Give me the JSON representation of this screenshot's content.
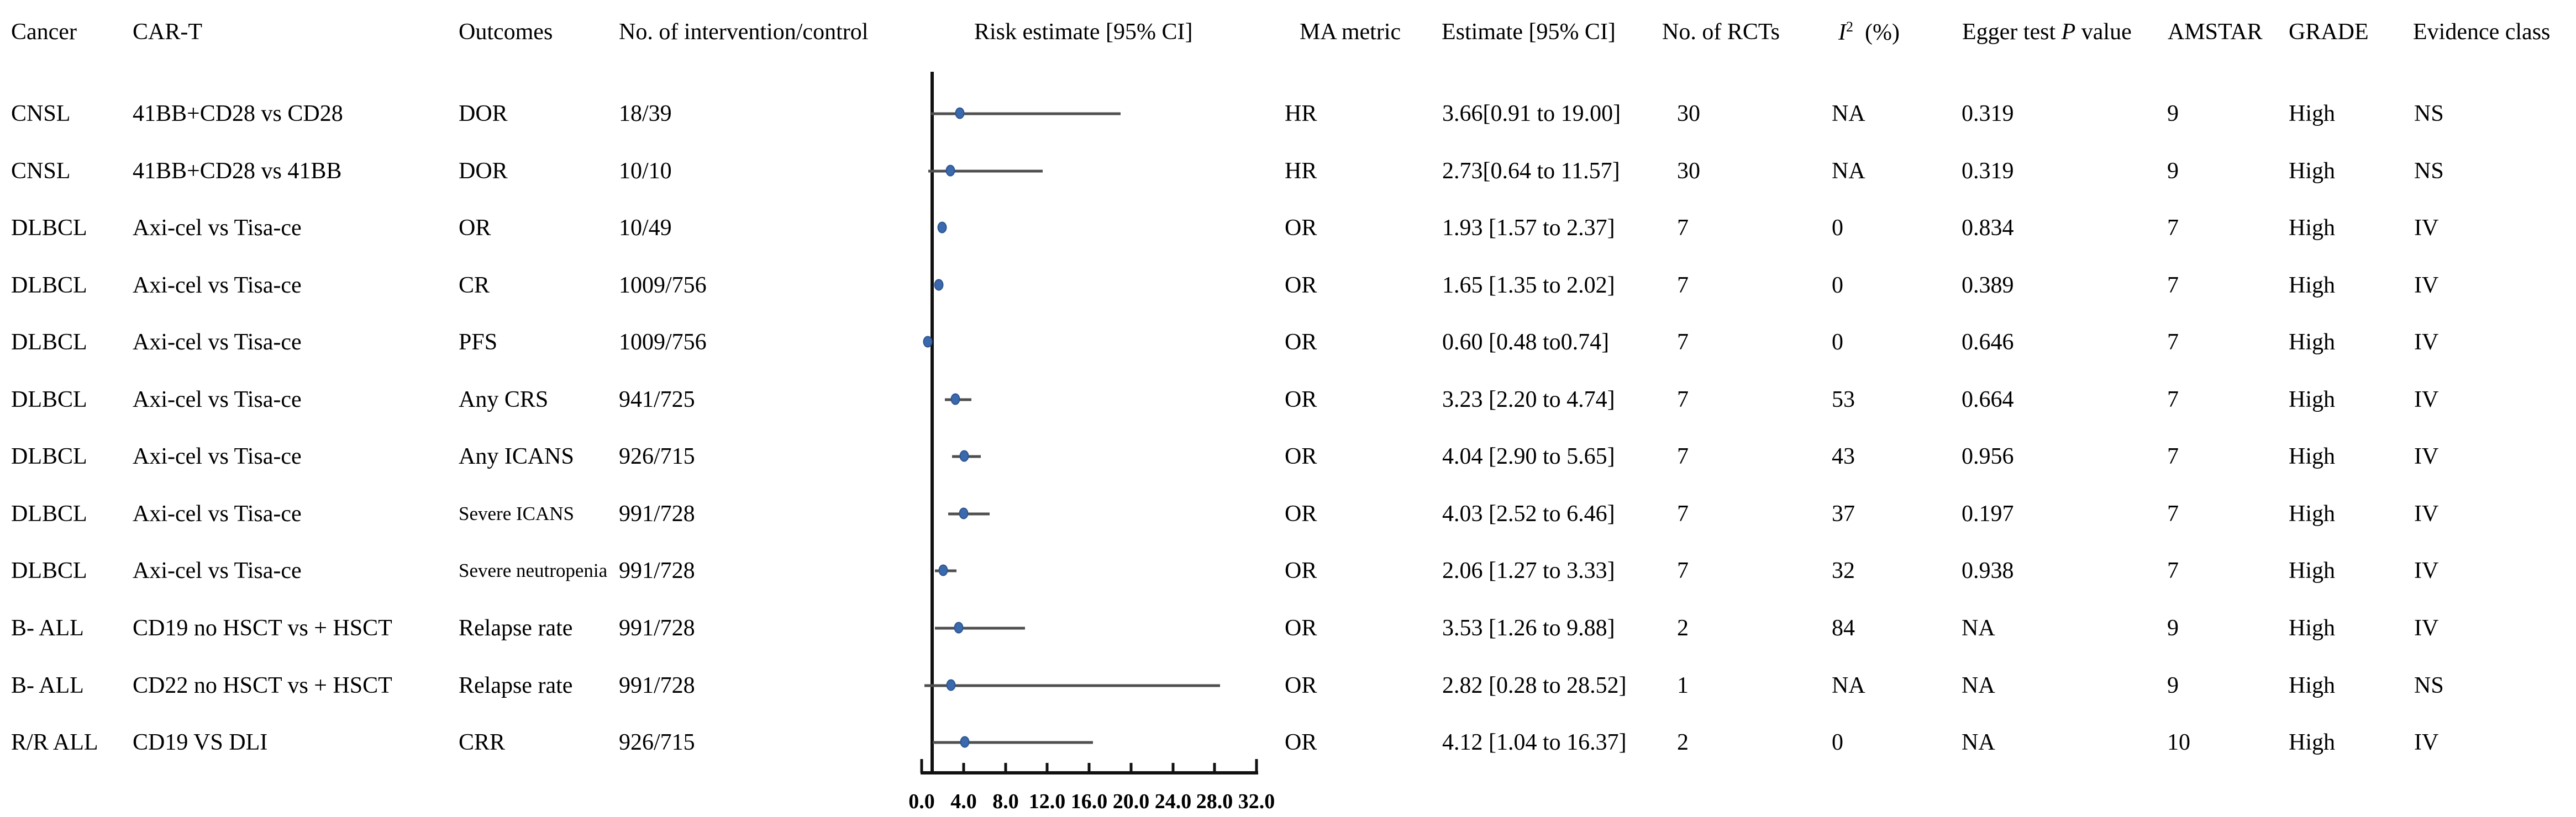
{
  "header": {
    "cancer": "Cancer",
    "cart": "CAR-T",
    "outcomes": "Outcomes",
    "n_intervention": "No. of intervention/control",
    "risk_estimate": "Risk estimate [95% CI]",
    "ma_metric": "MA metric",
    "estimate": "Estimate [95% CI]",
    "rcts": "No. of RCTs",
    "i2_base": "I",
    "i2_sup": "2",
    "i2_suffix": "(%)",
    "egger_pre": "Egger test",
    "egger_p": "P",
    "egger_post": "value",
    "amstar": "AMSTAR",
    "grade": "GRADE",
    "evidence": "Evidence class"
  },
  "rows": [
    {
      "cancer": "CNSL",
      "cart": "41BB+CD28 vs CD28",
      "outcome": "DOR",
      "n": "18/39",
      "ma": "HR",
      "estimate": "3.66[0.91 to 19.00]",
      "rcts": "30",
      "i2": "NA",
      "egger": "0.319",
      "amstar": "9",
      "grade": "High",
      "evidence": "NS"
    },
    {
      "cancer": "CNSL",
      "cart": "41BB+CD28 vs 41BB",
      "outcome": "DOR",
      "n": "10/10",
      "ma": "HR",
      "estimate": "2.73[0.64 to 11.57]",
      "rcts": "30",
      "i2": "NA",
      "egger": "0.319",
      "amstar": "9",
      "grade": "High",
      "evidence": "NS"
    },
    {
      "cancer": "DLBCL",
      "cart": "Axi-cel vs Tisa-ce",
      "outcome": "OR",
      "n": "10/49",
      "ma": "OR",
      "estimate": "1.93 [1.57 to 2.37]",
      "rcts": "7",
      "i2": "0",
      "egger": "0.834",
      "amstar": "7",
      "grade": "High",
      "evidence": "IV"
    },
    {
      "cancer": "DLBCL",
      "cart": "Axi-cel vs Tisa-ce",
      "outcome": "CR",
      "n": "1009/756",
      "ma": "OR",
      "estimate": "1.65 [1.35 to 2.02]",
      "rcts": "7",
      "i2": "0",
      "egger": "0.389",
      "amstar": "7",
      "grade": "High",
      "evidence": "IV"
    },
    {
      "cancer": "DLBCL",
      "cart": "Axi-cel vs Tisa-ce",
      "outcome": "PFS",
      "n": "1009/756",
      "ma": "OR",
      "estimate": "0.60 [0.48 to0.74]",
      "rcts": "7",
      "i2": "0",
      "egger": "0.646",
      "amstar": "7",
      "grade": "High",
      "evidence": "IV"
    },
    {
      "cancer": "DLBCL",
      "cart": "Axi-cel vs Tisa-ce",
      "outcome": "Any CRS",
      "n": "941/725",
      "ma": "OR",
      "estimate": "3.23 [2.20 to 4.74]",
      "rcts": "7",
      "i2": "53",
      "egger": "0.664",
      "amstar": "7",
      "grade": "High",
      "evidence": "IV"
    },
    {
      "cancer": "DLBCL",
      "cart": "Axi-cel vs Tisa-ce",
      "outcome": "Any ICANS",
      "n": "926/715",
      "ma": "OR",
      "estimate": "4.04 [2.90 to 5.65]",
      "rcts": "7",
      "i2": "43",
      "egger": "0.956",
      "amstar": "7",
      "grade": "High",
      "evidence": "IV"
    },
    {
      "cancer": "DLBCL",
      "cart": "Axi-cel vs Tisa-ce",
      "outcome": "Severe ICANS",
      "n": "991/728",
      "ma": "OR",
      "estimate": "4.03 [2.52 to 6.46]",
      "rcts": "7",
      "i2": "37",
      "egger": "0.197",
      "amstar": "7",
      "grade": "High",
      "evidence": "IV"
    },
    {
      "cancer": "DLBCL",
      "cart": "Axi-cel vs Tisa-ce",
      "outcome": "Severe neutropenia",
      "n": "991/728",
      "ma": "OR",
      "estimate": "2.06 [1.27 to 3.33]",
      "rcts": "7",
      "i2": "32",
      "egger": "0.938",
      "amstar": "7",
      "grade": "High",
      "evidence": "IV"
    },
    {
      "cancer": "B- ALL",
      "cart": "CD19 no HSCT vs + HSCT",
      "outcome": "Relapse rate",
      "n": "991/728",
      "ma": "OR",
      "estimate": "3.53 [1.26 to 9.88]",
      "rcts": "2",
      "i2": "84",
      "egger": "NA",
      "amstar": "9",
      "grade": "High",
      "evidence": "IV"
    },
    {
      "cancer": "B- ALL",
      "cart": "CD22 no HSCT vs + HSCT",
      "outcome": "Relapse rate",
      "n": "991/728",
      "ma": "OR",
      "estimate": "2.82 [0.28 to 28.52]",
      "rcts": "1",
      "i2": "NA",
      "egger": "NA",
      "amstar": "9",
      "grade": "High",
      "evidence": "NS"
    },
    {
      "cancer": "R/R ALL",
      "cart": "CD19 VS DLI",
      "outcome": "CRR",
      "n": "926/715",
      "ma": "OR",
      "estimate": "4.12 [1.04 to 16.37]",
      "rcts": "2",
      "i2": "0",
      "egger": "NA",
      "amstar": "10",
      "grade": "High",
      "evidence": "IV"
    }
  ],
  "chart_data": {
    "type": "forest",
    "title": "Risk estimate [95% CI]",
    "xlim": [
      0,
      32
    ],
    "x_ticks": [
      0,
      4,
      8,
      12,
      16,
      20,
      24,
      28,
      32
    ],
    "x_tick_labels": [
      "0.0",
      "4.0",
      "8.0",
      "12.0",
      "16.0",
      "20.0",
      "24.0",
      "28.0",
      "32.0"
    ],
    "reference_line_x": 1.0,
    "grid": false,
    "legend": "none",
    "points": [
      {
        "est": 3.66,
        "lo": 0.91,
        "hi": 19.0
      },
      {
        "est": 2.73,
        "lo": 0.64,
        "hi": 11.57
      },
      {
        "est": 1.93,
        "lo": 1.57,
        "hi": 2.37
      },
      {
        "est": 1.65,
        "lo": 1.35,
        "hi": 2.02
      },
      {
        "est": 0.6,
        "lo": 0.48,
        "hi": 0.74
      },
      {
        "est": 3.23,
        "lo": 2.2,
        "hi": 4.74
      },
      {
        "est": 4.04,
        "lo": 2.9,
        "hi": 5.65
      },
      {
        "est": 4.03,
        "lo": 2.52,
        "hi": 6.46
      },
      {
        "est": 2.06,
        "lo": 1.27,
        "hi": 3.33
      },
      {
        "est": 3.53,
        "lo": 1.26,
        "hi": 9.88
      },
      {
        "est": 2.82,
        "lo": 0.28,
        "hi": 28.52
      },
      {
        "est": 4.12,
        "lo": 1.04,
        "hi": 16.37
      }
    ]
  },
  "colors": {
    "marker_fill": "#3b69ad",
    "marker_edge": "#2c5490",
    "ci_line": "#4f4f4f",
    "axis": "#111111",
    "text": "#000000"
  }
}
